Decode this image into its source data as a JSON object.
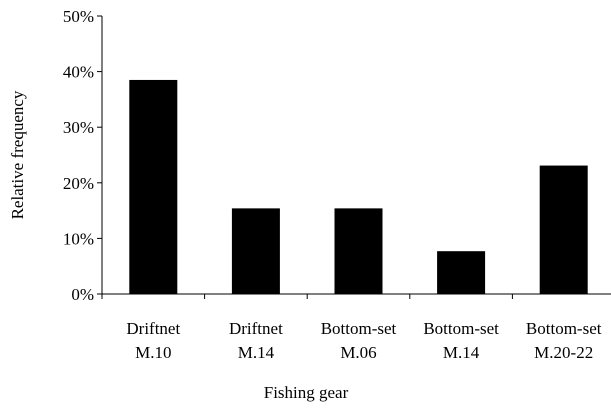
{
  "chart_data": {
    "type": "bar",
    "title": "",
    "xlabel": "Fishing gear",
    "ylabel": "Relative frequency",
    "categories": [
      [
        "Driftnet",
        "M.10"
      ],
      [
        "Driftnet",
        "M.14"
      ],
      [
        "Bottom-set",
        "M.06"
      ],
      [
        "Bottom-set",
        "M.14"
      ],
      [
        "Bottom-set",
        "M.20-22"
      ]
    ],
    "values": [
      38.5,
      15.4,
      15.4,
      7.7,
      23.1
    ],
    "ylim": [
      0,
      50
    ],
    "yticks": [
      0,
      10,
      20,
      30,
      40,
      50
    ],
    "ytick_labels": [
      "0%",
      "10%",
      "20%",
      "30%",
      "40%",
      "50%"
    ],
    "grid": false,
    "legend": "none",
    "bar_color": "#000000"
  }
}
